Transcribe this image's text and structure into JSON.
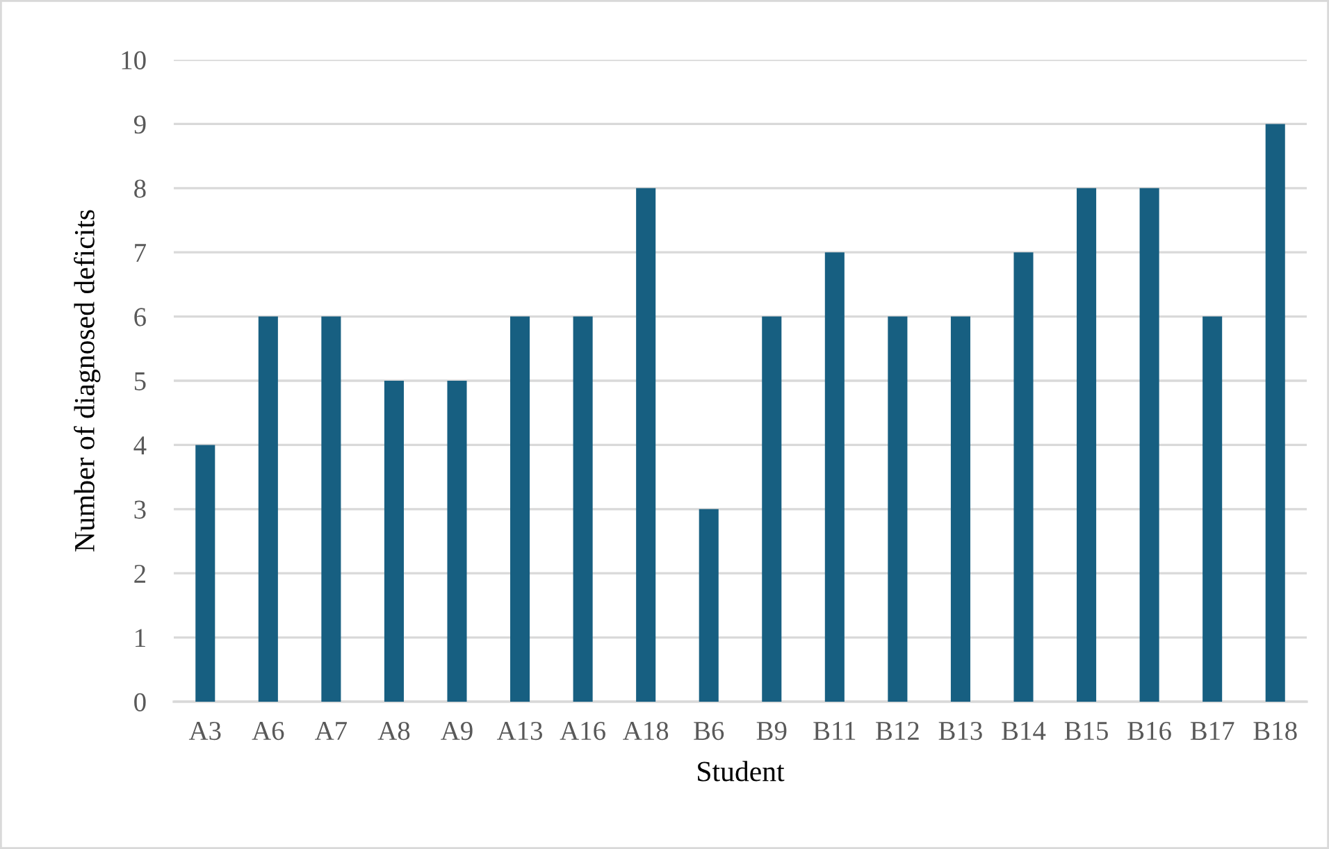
{
  "chart_data": {
    "type": "bar",
    "xlabel": "Student",
    "ylabel": "Number of diagnosed deficits",
    "categories": [
      "A3",
      "A6",
      "A7",
      "A8",
      "A9",
      "A13",
      "A16",
      "A18",
      "B6",
      "B9",
      "B11",
      "B12",
      "B13",
      "B14",
      "B15",
      "B16",
      "B17",
      "B18"
    ],
    "values": [
      4,
      6,
      6,
      5,
      5,
      6,
      6,
      8,
      3,
      6,
      7,
      6,
      6,
      7,
      8,
      8,
      6,
      9
    ],
    "color": "#175f81",
    "ylim": [
      0,
      10
    ],
    "yticks": [
      0,
      1,
      2,
      3,
      4,
      5,
      6,
      7,
      8,
      9,
      10
    ],
    "grid": "y",
    "legend": false
  }
}
